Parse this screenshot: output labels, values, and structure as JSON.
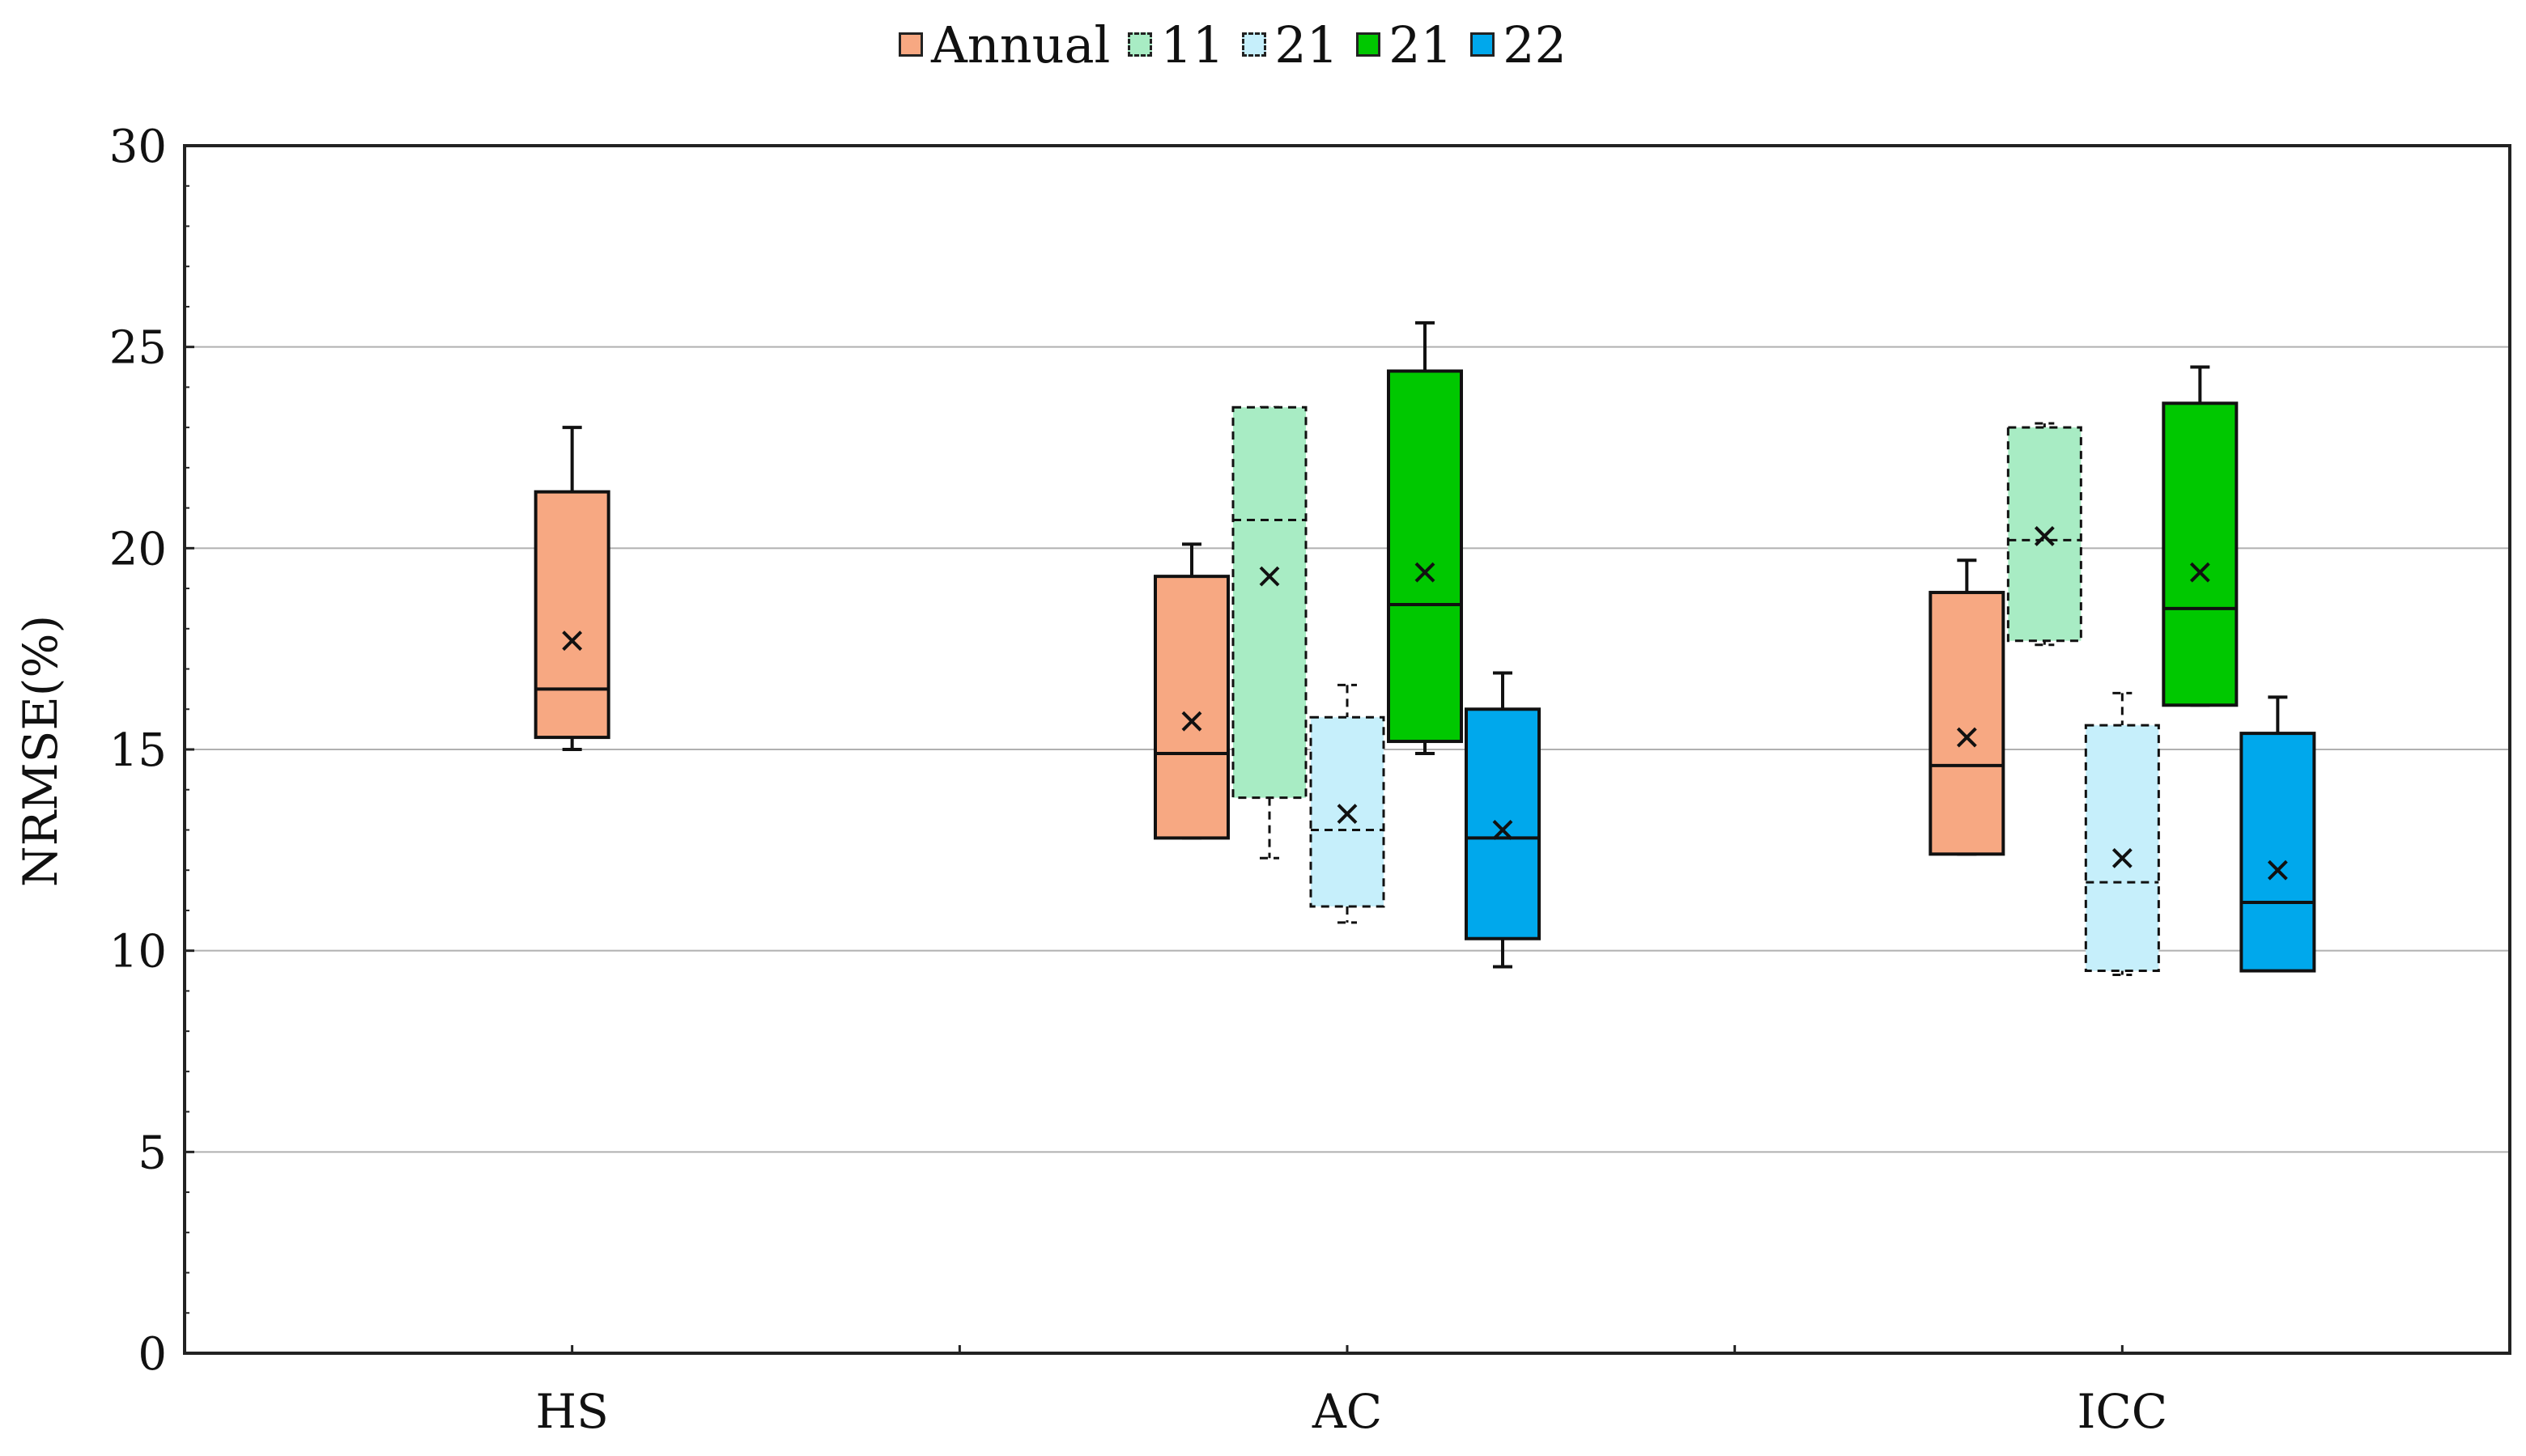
{
  "chart_data": {
    "type": "box",
    "title": "",
    "xlabel": "",
    "ylabel": "NRMSE(%)",
    "ylim": [
      0,
      30
    ],
    "yticks": [
      "0",
      "5",
      "10",
      "15",
      "20",
      "25",
      "30"
    ],
    "categories": [
      "HS",
      "AC",
      "ICC"
    ],
    "grid": true,
    "legend_position": "top-center",
    "series": [
      {
        "name": "Annual",
        "color": "#f7a882",
        "dashed": false,
        "boxes": {
          "HS": {
            "min": 15.0,
            "q1": 15.3,
            "median": 16.5,
            "q3": 21.4,
            "max": 23.0,
            "mean": 17.7
          },
          "AC": {
            "min": 12.8,
            "q1": 12.8,
            "median": 14.9,
            "q3": 19.3,
            "max": 20.1,
            "mean": 15.7
          },
          "ICC": {
            "min": 12.4,
            "q1": 12.4,
            "median": 14.6,
            "q3": 18.9,
            "max": 19.7,
            "mean": 15.3
          }
        }
      },
      {
        "name": "11",
        "color": "#a8ecc4",
        "dashed": true,
        "boxes": {
          "AC": {
            "min": 12.3,
            "q1": 13.8,
            "median": 20.7,
            "q3": 23.5,
            "max": 23.5,
            "mean": 19.3
          },
          "ICC": {
            "min": 17.6,
            "q1": 17.7,
            "median": 20.2,
            "q3": 23.0,
            "max": 23.1,
            "mean": 20.3
          }
        }
      },
      {
        "name": "21",
        "color": "#c6effb",
        "dashed": true,
        "boxes": {
          "AC": {
            "min": 10.7,
            "q1": 11.1,
            "median": 13.0,
            "q3": 15.8,
            "max": 16.6,
            "mean": 13.4
          },
          "ICC": {
            "min": 9.4,
            "q1": 9.5,
            "median": 11.7,
            "q3": 15.6,
            "max": 16.4,
            "mean": 12.3
          }
        }
      },
      {
        "name": "21",
        "color": "#00c800",
        "dashed": false,
        "boxes": {
          "AC": {
            "min": 14.9,
            "q1": 15.2,
            "median": 18.6,
            "q3": 24.4,
            "max": 25.6,
            "mean": 19.4
          },
          "ICC": {
            "min": 16.1,
            "q1": 16.1,
            "median": 18.5,
            "q3": 23.6,
            "max": 24.5,
            "mean": 19.4
          }
        }
      },
      {
        "name": "22",
        "color": "#00a8ec",
        "dashed": false,
        "boxes": {
          "AC": {
            "min": 9.6,
            "q1": 10.3,
            "median": 12.8,
            "q3": 16.0,
            "max": 16.9,
            "mean": 13.0
          },
          "ICC": {
            "min": 9.5,
            "q1": 9.5,
            "median": 11.2,
            "q3": 15.4,
            "max": 16.3,
            "mean": 12.0
          }
        }
      }
    ]
  }
}
